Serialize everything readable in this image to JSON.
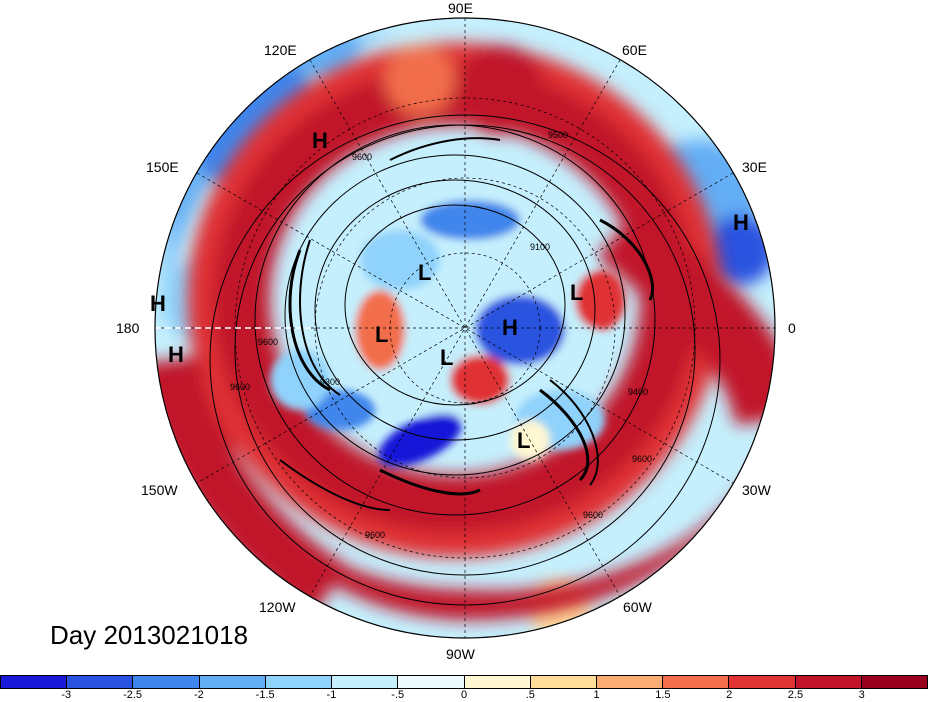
{
  "title": "Day 2013021018",
  "longitude_labels": {
    "lon_90e": "90E",
    "lon_60e": "60E",
    "lon_30e": "30E",
    "lon_0": "0",
    "lon_30w": "30W",
    "lon_60w": "60W",
    "lon_90w": "90W",
    "lon_120w": "120W",
    "lon_150w": "150W",
    "lon_180": "180",
    "lon_150e": "150E",
    "lon_120e": "120E"
  },
  "pressure_centers": [
    "H",
    "H",
    "H",
    "H",
    "H",
    "L",
    "L",
    "L",
    "L",
    "L"
  ],
  "contour_labels": [
    "9600",
    "9500",
    "9100",
    "9600",
    "9300",
    "9400",
    "9600",
    "9600",
    "9600",
    "9600"
  ],
  "colorbar": {
    "ticks": [
      "-3",
      "-2.5",
      "-2",
      "-1.5",
      "-1",
      "-.5",
      "0",
      ".5",
      "1",
      "1.5",
      "2",
      "2.5",
      "3"
    ],
    "colors": [
      "#1919d8",
      "#2a52e0",
      "#3f86ec",
      "#63aef5",
      "#8fd2fb",
      "#c5effd",
      "#edfbfe",
      "#fff6d2",
      "#fedd9a",
      "#fbac72",
      "#f26e4c",
      "#e03334",
      "#c1142a",
      "#99001e"
    ]
  }
}
